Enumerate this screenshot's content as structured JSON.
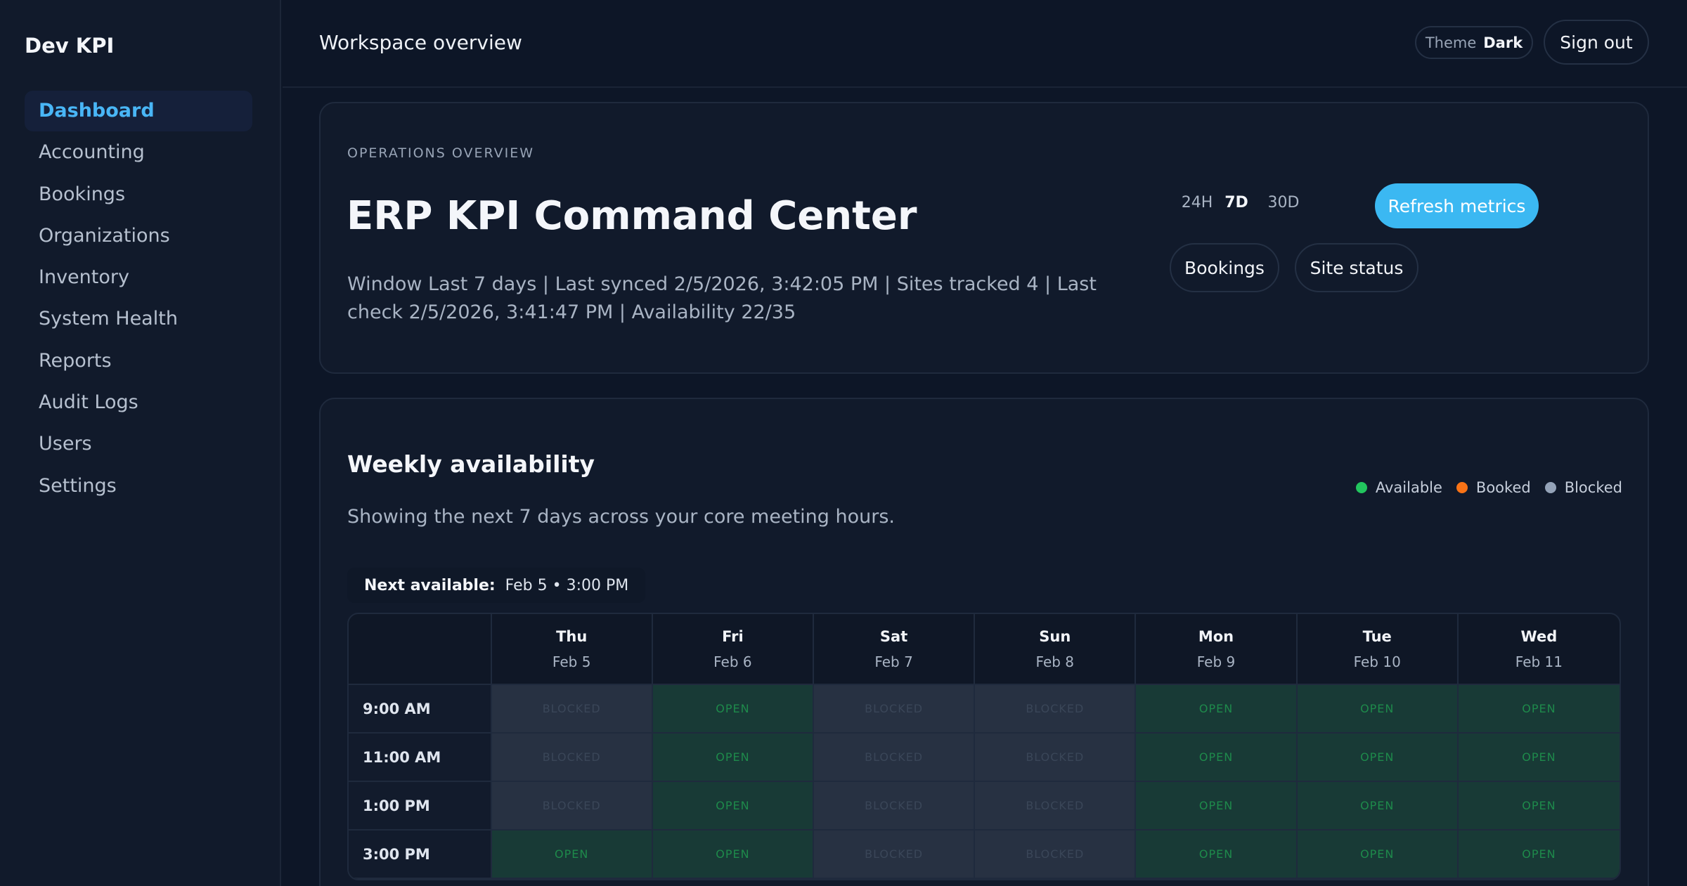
{
  "sidebar": {
    "brand": "Dev KPI",
    "items": [
      {
        "label": "Dashboard",
        "active": true
      },
      {
        "label": "Accounting"
      },
      {
        "label": "Bookings"
      },
      {
        "label": "Organizations"
      },
      {
        "label": "Inventory"
      },
      {
        "label": "System Health"
      },
      {
        "label": "Reports"
      },
      {
        "label": "Audit Logs"
      },
      {
        "label": "Users"
      },
      {
        "label": "Settings"
      }
    ]
  },
  "topbar": {
    "title": "Workspace overview",
    "theme_label": "Theme",
    "theme_value": "Dark",
    "signout_label": "Sign out"
  },
  "overview": {
    "eyebrow": "OPERATIONS OVERVIEW",
    "title": "ERP KPI Command Center",
    "meta": "Window Last 7 days | Last synced 2/5/2026, 3:42:05 PM | Sites tracked 4 | Last check 2/5/2026, 3:41:47 PM | Availability 22/35",
    "ranges": [
      {
        "label": "24H",
        "active": false
      },
      {
        "label": "7D",
        "active": true
      },
      {
        "label": "30D",
        "active": false
      }
    ],
    "refresh_label": "Refresh metrics",
    "bookings_label": "Bookings",
    "site_status_label": "Site status"
  },
  "availability": {
    "title": "Weekly availability",
    "subtitle": "Showing the next 7 days across your core meeting hours.",
    "legend": [
      {
        "label": "Available",
        "color": "#22c55e"
      },
      {
        "label": "Booked",
        "color": "#f97316"
      },
      {
        "label": "Blocked",
        "color": "#94a3b8"
      }
    ],
    "next_label": "Next available:",
    "next_value": "Feb 5 • 3:00 PM",
    "days": [
      {
        "name": "Thu",
        "date": "Feb 5"
      },
      {
        "name": "Fri",
        "date": "Feb 6"
      },
      {
        "name": "Sat",
        "date": "Feb 7"
      },
      {
        "name": "Sun",
        "date": "Feb 8"
      },
      {
        "name": "Mon",
        "date": "Feb 9"
      },
      {
        "name": "Tue",
        "date": "Feb 10"
      },
      {
        "name": "Wed",
        "date": "Feb 11"
      }
    ],
    "status_labels": {
      "open": "OPEN",
      "blocked": "BLOCKED",
      "booked": "BOOKED"
    },
    "slots": [
      {
        "time": "9:00 AM",
        "cells": [
          "blocked",
          "open",
          "blocked",
          "blocked",
          "open",
          "open",
          "open"
        ]
      },
      {
        "time": "11:00 AM",
        "cells": [
          "blocked",
          "open",
          "blocked",
          "blocked",
          "open",
          "open",
          "open"
        ]
      },
      {
        "time": "1:00 PM",
        "cells": [
          "blocked",
          "open",
          "blocked",
          "blocked",
          "open",
          "open",
          "open"
        ]
      },
      {
        "time": "3:00 PM",
        "cells": [
          "open",
          "open",
          "blocked",
          "blocked",
          "open",
          "open",
          "open"
        ]
      }
    ]
  }
}
